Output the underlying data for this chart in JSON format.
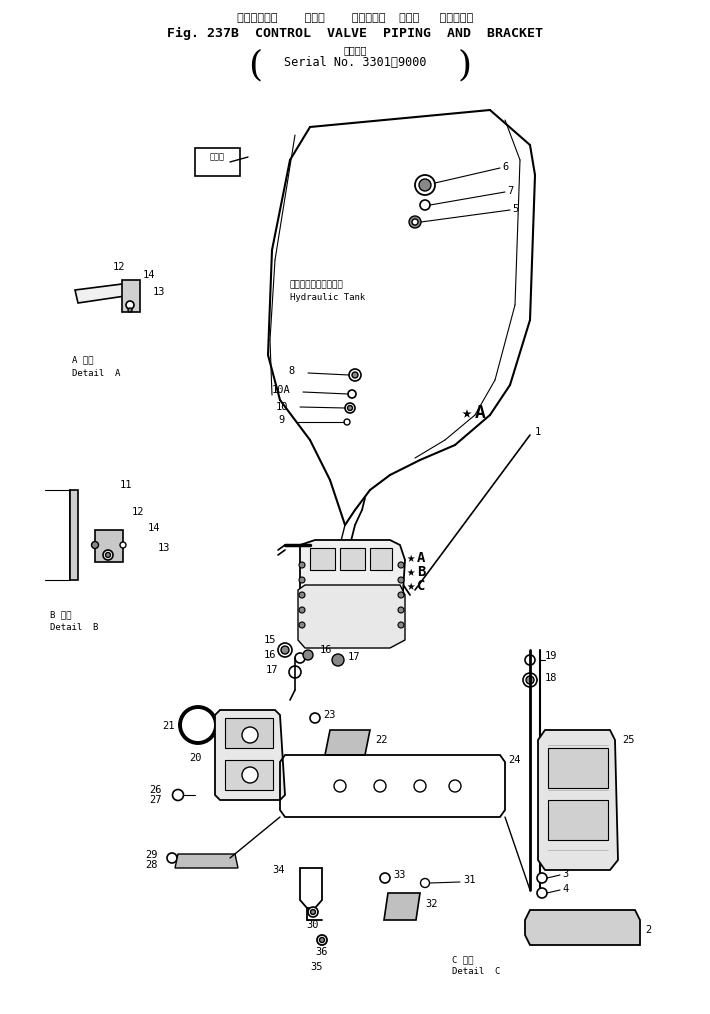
{
  "title_ja": "コントロール    バルブ    パイピング  および   ブラケット",
  "title_en": "Fig. 237B  CONTROL  VALVE  PIPING  AND  BRACKET",
  "serial_ja": "適用号機",
  "serial_en": "Serial No. 3301～9000",
  "bg_color": "#ffffff",
  "lc": "#000000",
  "tc": "#000000",
  "tank_label_ja": "ハイドロリックタンク",
  "tank_label_en": "Hydraulic Tank",
  "det_a_ja": "A 詳細",
  "det_a_en": "Detail  A",
  "det_b_ja": "B 詳細",
  "det_b_en": "Detail  B",
  "det_c_ja": "C 詳細",
  "det_c_en": "Detail  C"
}
